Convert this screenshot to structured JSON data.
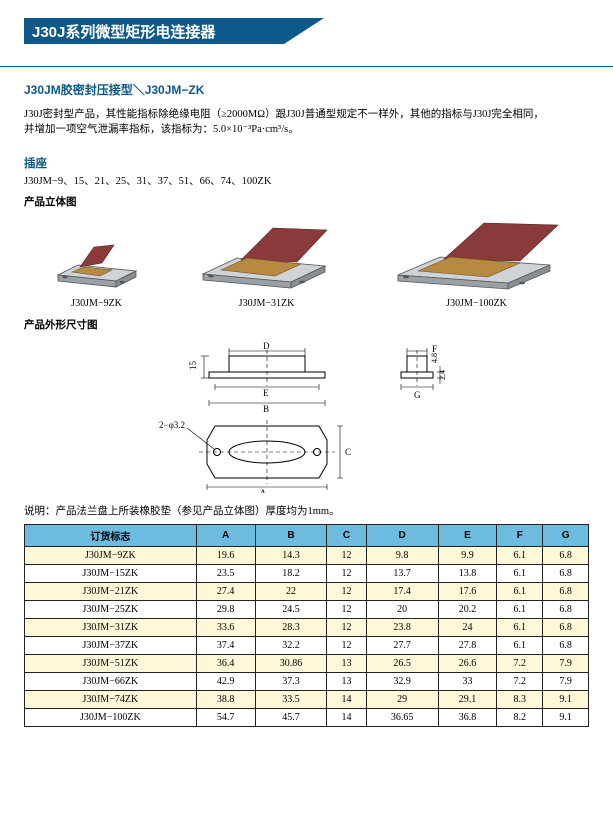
{
  "header": {
    "title": "J30J系列微型矩形电连接器"
  },
  "subtitle": "J30JM胶密封压接型＼J30JM−ZK",
  "intro_line1": "J30J密封型产品，其性能指标除绝缘电阻（≥2000MΩ）跟J30J普通型规定不一样外，其他的指标与J30J完全相同，",
  "intro_line2": "并增加一项空气泄漏率指标，该指标为：5.0×10⁻³Pa·cm³/s。",
  "socket": {
    "heading": "插座",
    "models": "J30JM−9、15、21、25、31、37、51、66、74、100ZK",
    "iso_heading": "产品立体图",
    "labels": [
      "J30JM−9ZK",
      "J30JM−31ZK",
      "J30JM−100ZK"
    ]
  },
  "dim_heading": "产品外形尺寸图",
  "diagram_labels": {
    "A": "A",
    "B": "B",
    "C": "C",
    "D": "D",
    "E": "E",
    "F": "F",
    "G": "G",
    "h15": "15",
    "h24": "2.4",
    "h48": "4.8",
    "hole": "2−φ3.2"
  },
  "table_note": "说明：产品法兰盘上所装橡胶垫（参见产品立体图）厚度均为1mm。",
  "table": {
    "columns": [
      "订货标志",
      "A",
      "B",
      "C",
      "D",
      "E",
      "F",
      "G"
    ],
    "rows": [
      [
        "J30JM−9ZK",
        "19.6",
        "14.3",
        "12",
        "9.8",
        "9.9",
        "6.1",
        "6.8"
      ],
      [
        "J30JM−15ZK",
        "23.5",
        "18.2",
        "12",
        "13.7",
        "13.8",
        "6.1",
        "6.8"
      ],
      [
        "J30JM−21ZK",
        "27.4",
        "22",
        "12",
        "17.4",
        "17.6",
        "6.1",
        "6.8"
      ],
      [
        "J30JM−25ZK",
        "29.8",
        "24.5",
        "12",
        "20",
        "20.2",
        "6.1",
        "6.8"
      ],
      [
        "J30JM−31ZK",
        "33.6",
        "28.3",
        "12",
        "23.8",
        "24",
        "6.1",
        "6.8"
      ],
      [
        "J30JM−37ZK",
        "37.4",
        "32.2",
        "12",
        "27.7",
        "27.8",
        "6.1",
        "6.8"
      ],
      [
        "J30JM−51ZK",
        "36.4",
        "30.86",
        "13",
        "26.5",
        "26.6",
        "7.2",
        "7.9"
      ],
      [
        "J30JM−66ZK",
        "42.9",
        "37.3",
        "13",
        "32.9",
        "33",
        "7.2",
        "7.9"
      ],
      [
        "J30JM−74ZK",
        "38.8",
        "33.5",
        "14",
        "29",
        "29.1",
        "8.3",
        "9.1"
      ],
      [
        "J30JM−100ZK",
        "54.7",
        "45.7",
        "14",
        "36.65",
        "36.8",
        "8.2",
        "9.1"
      ]
    ],
    "header_bg": "#6ebbe0",
    "row_odd_bg": "#fef8d8",
    "row_even_bg": "#ffffff",
    "border_color": "#222222"
  }
}
